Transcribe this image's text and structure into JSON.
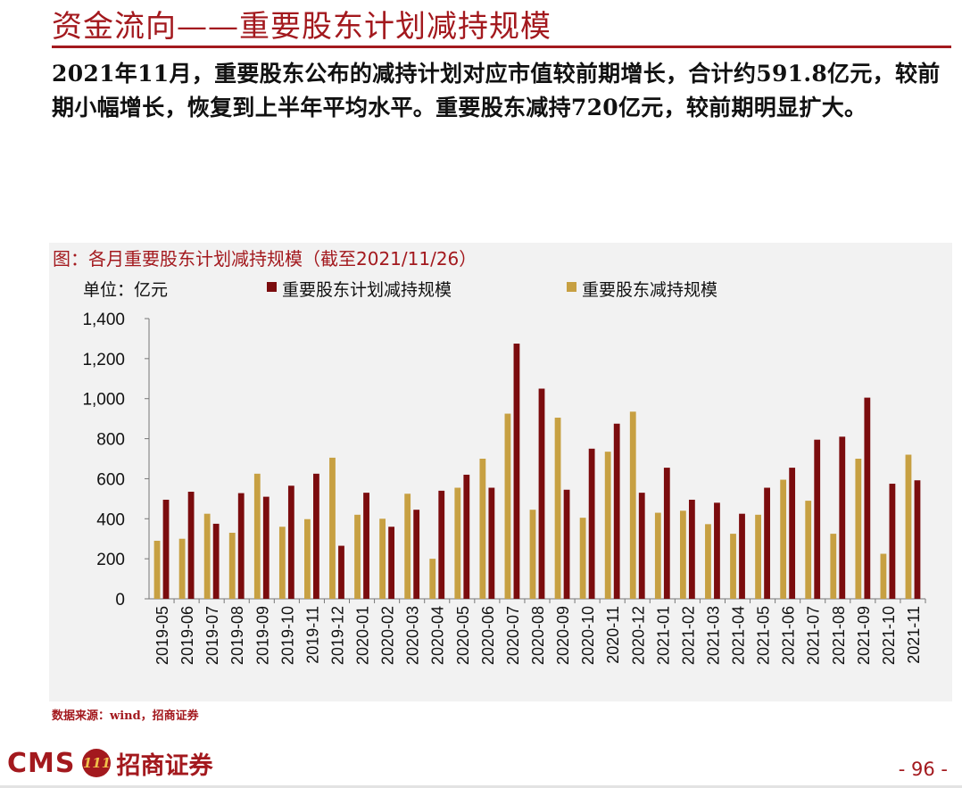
{
  "page": {
    "title": "资金流向——重要股东计划减持规模",
    "summary": "2021年11月，重要股东公布的减持计划对应市值较前期增长，合计约591.8亿元，较前期小幅增长，恢复到上半年平均水平。重要股东减持720亿元，较前期明显扩大。",
    "source": "数据来源：wind，招商证券",
    "logo_text": "CMS",
    "logo_mark": "111",
    "logo_cn": "招商证券",
    "page_number": "- 96 -"
  },
  "colors": {
    "brand": "#a3191e",
    "series_planned": "#7b0c0e",
    "series_actual": "#c7a042"
  },
  "chart_data": {
    "type": "bar",
    "title": "图：各月重要股东计划减持规模（截至2021/11/26）",
    "unit_label": "单位：亿元",
    "categories": [
      "2019-05",
      "2019-06",
      "2019-07",
      "2019-08",
      "2019-09",
      "2019-10",
      "2019-11",
      "2019-12",
      "2020-01",
      "2020-02",
      "2020-03",
      "2020-04",
      "2020-05",
      "2020-06",
      "2020-07",
      "2020-08",
      "2020-09",
      "2020-10",
      "2020-11",
      "2020-12",
      "2021-01",
      "2021-02",
      "2021-03",
      "2021-04",
      "2021-05",
      "2021-06",
      "2021-07",
      "2021-08",
      "2021-09",
      "2021-10",
      "2021-11"
    ],
    "series": [
      {
        "name": "重要股东计划减持规模",
        "color": "#7b0c0e",
        "values": [
          495,
          535,
          375,
          528,
          510,
          565,
          625,
          265,
          530,
          360,
          445,
          540,
          620,
          555,
          1275,
          1050,
          545,
          750,
          875,
          530,
          655,
          495,
          480,
          425,
          555,
          655,
          795,
          810,
          1005,
          575,
          592
        ]
      },
      {
        "name": "重要股东减持规模",
        "color": "#c7a042",
        "values": [
          290,
          300,
          425,
          330,
          625,
          360,
          398,
          705,
          420,
          400,
          525,
          200,
          555,
          700,
          925,
          445,
          905,
          405,
          735,
          935,
          430,
          440,
          373,
          325,
          420,
          595,
          490,
          325,
          700,
          225,
          720
        ]
      }
    ],
    "series_order": [
      "重要股东减持规模",
      "重要股东计划减持规模"
    ],
    "ylim": [
      0,
      1400
    ],
    "yticks": [
      0,
      200,
      400,
      600,
      800,
      1000,
      1200,
      1400
    ],
    "ytick_labels": [
      "0",
      "200",
      "400",
      "600",
      "800",
      "1,000",
      "1,200",
      "1,400"
    ],
    "legend_position": "top",
    "grid": false
  }
}
